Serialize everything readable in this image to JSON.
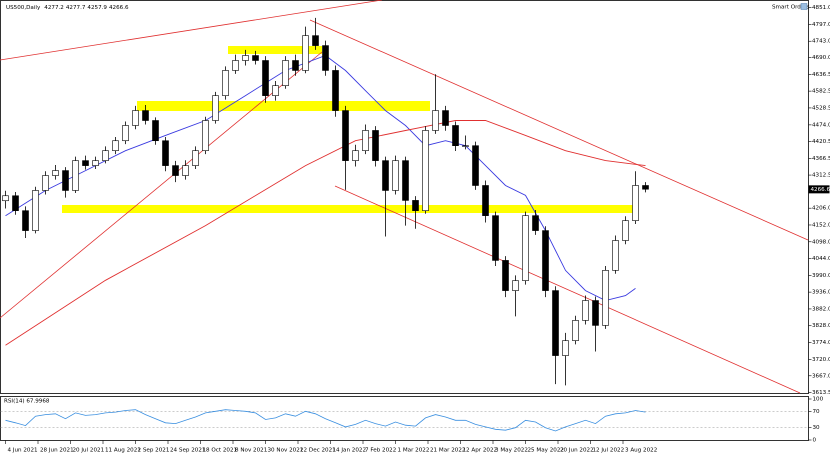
{
  "chart_data": {
    "type": "candlestick",
    "symbol": "US500,Daily",
    "readout": [
      4277.2,
      4277.7,
      4257.9,
      4266.6
    ],
    "toolbar_label": "Smart Orders",
    "candles": [
      [
        4230,
        4262,
        4205,
        4246
      ],
      [
        4246,
        4258,
        4185,
        4198
      ],
      [
        4198,
        4212,
        4110,
        4134
      ],
      [
        4134,
        4275,
        4125,
        4263
      ],
      [
        4263,
        4325,
        4250,
        4311
      ],
      [
        4311,
        4345,
        4298,
        4327
      ],
      [
        4327,
        4338,
        4240,
        4263
      ],
      [
        4263,
        4372,
        4255,
        4359
      ],
      [
        4359,
        4375,
        4330,
        4343
      ],
      [
        4343,
        4372,
        4332,
        4359
      ],
      [
        4359,
        4405,
        4350,
        4391
      ],
      [
        4391,
        4435,
        4380,
        4423
      ],
      [
        4423,
        4485,
        4412,
        4472
      ],
      [
        4472,
        4535,
        4460,
        4520
      ],
      [
        4520,
        4538,
        4475,
        4488
      ],
      [
        4488,
        4498,
        4410,
        4423
      ],
      [
        4423,
        4435,
        4325,
        4343
      ],
      [
        4343,
        4358,
        4290,
        4311
      ],
      [
        4311,
        4360,
        4298,
        4343
      ],
      [
        4343,
        4405,
        4332,
        4391
      ],
      [
        4391,
        4500,
        4380,
        4488
      ],
      [
        4488,
        4580,
        4478,
        4568
      ],
      [
        4568,
        4662,
        4555,
        4649
      ],
      [
        4649,
        4700,
        4638,
        4681
      ],
      [
        4681,
        4715,
        4665,
        4697
      ],
      [
        4697,
        4712,
        4668,
        4681
      ],
      [
        4681,
        4695,
        4545,
        4568
      ],
      [
        4568,
        4615,
        4552,
        4600
      ],
      [
        4600,
        4695,
        4590,
        4681
      ],
      [
        4681,
        4700,
        4632,
        4649
      ],
      [
        4649,
        4790,
        4640,
        4761
      ],
      [
        4761,
        4818,
        4715,
        4729
      ],
      [
        4729,
        4745,
        4632,
        4649
      ],
      [
        4649,
        4665,
        4500,
        4520
      ],
      [
        4520,
        4535,
        4265,
        4359
      ],
      [
        4359,
        4410,
        4340,
        4391
      ],
      [
        4391,
        4475,
        4380,
        4456
      ],
      [
        4456,
        4470,
        4340,
        4359
      ],
      [
        4359,
        4372,
        4115,
        4263
      ],
      [
        4263,
        4375,
        4250,
        4359
      ],
      [
        4359,
        4372,
        4150,
        4231
      ],
      [
        4231,
        4245,
        4140,
        4198
      ],
      [
        4198,
        4470,
        4188,
        4456
      ],
      [
        4456,
        4637,
        4445,
        4520
      ],
      [
        4520,
        4535,
        4455,
        4472
      ],
      [
        4472,
        4485,
        4390,
        4407
      ],
      [
        4407,
        4440,
        4395,
        4407
      ],
      [
        4407,
        4420,
        4265,
        4279
      ],
      [
        4279,
        4295,
        4160,
        4182
      ],
      [
        4182,
        4195,
        4020,
        4038
      ],
      [
        4038,
        4052,
        3920,
        3941
      ],
      [
        3941,
        3990,
        3858,
        3973
      ],
      [
        3973,
        4195,
        3960,
        4182
      ],
      [
        4182,
        4200,
        4120,
        4134
      ],
      [
        4134,
        4148,
        3920,
        3941
      ],
      [
        3941,
        3955,
        3640,
        3732
      ],
      [
        3732,
        3805,
        3636,
        3780
      ],
      [
        3780,
        3860,
        3768,
        3845
      ],
      [
        3845,
        3925,
        3832,
        3909
      ],
      [
        3909,
        3922,
        3745,
        3829
      ],
      [
        3829,
        4020,
        3818,
        4006
      ],
      [
        4006,
        4118,
        3995,
        4102
      ],
      [
        4102,
        4180,
        4090,
        4166
      ],
      [
        4166,
        4325,
        4155,
        4279
      ],
      [
        4279,
        4290,
        4257,
        4267
      ]
    ],
    "candle_color": "#000000",
    "series": [
      {
        "color": "#3a3ae0",
        "x": [
          0,
          4,
          8,
          12,
          16,
          20,
          24,
          28,
          32,
          34,
          36,
          38,
          40,
          42,
          44,
          46,
          48,
          50,
          52,
          54,
          56,
          58,
          60,
          62,
          63
        ],
        "values": [
          4182,
          4263,
          4327,
          4391,
          4440,
          4488,
          4568,
          4649,
          4697,
          4649,
          4584,
          4520,
          4472,
          4407,
          4423,
          4407,
          4343,
          4279,
          4247,
          4134,
          4006,
          3941,
          3909,
          3925,
          3948
        ]
      },
      {
        "color": "#e03030",
        "x": [
          0,
          10,
          20,
          30,
          35,
          40,
          45,
          48,
          52,
          56,
          60,
          64
        ],
        "values": [
          3765,
          3974,
          4150,
          4343,
          4423,
          4456,
          4488,
          4488,
          4440,
          4391,
          4359,
          4343
        ]
      }
    ],
    "xlim": [
      -0.5,
      80.3
    ],
    "ylim": [
      3610,
      4874
    ],
    "xticks": [
      {
        "value": 0,
        "label": "4 Jun 2021"
      },
      {
        "value": 3.25,
        "label": "28 Jun 2021"
      },
      {
        "value": 6.5,
        "label": "20 Jul 2021"
      },
      {
        "value": 9.75,
        "label": "11 Aug 2021"
      },
      {
        "value": 13,
        "label": "2 Sep 2021"
      },
      {
        "value": 16.25,
        "label": "24 Sep 2021"
      },
      {
        "value": 19.5,
        "label": "18 Oct 2021"
      },
      {
        "value": 22.75,
        "label": "8 Nov 2021"
      },
      {
        "value": 26,
        "label": "30 Nov 2021"
      },
      {
        "value": 29.25,
        "label": "22 Dec 2021"
      },
      {
        "value": 32.5,
        "label": "14 Jan 2022"
      },
      {
        "value": 35.75,
        "label": "7 Feb 2022"
      },
      {
        "value": 39,
        "label": "1 Mar 2022"
      },
      {
        "value": 42.25,
        "label": "21 Mar 2022"
      },
      {
        "value": 45.5,
        "label": "12 Apr 2022"
      },
      {
        "value": 48.75,
        "label": "3 May 2022"
      },
      {
        "value": 52,
        "label": "25 May 2022"
      },
      {
        "value": 55.25,
        "label": "20 Jun 2022"
      },
      {
        "value": 58.5,
        "label": "12 Jul 2022"
      },
      {
        "value": 61.75,
        "label": "3 Aug 2022"
      }
    ],
    "yticks": [
      {
        "value": 4851,
        "label": "4851.0"
      },
      {
        "value": 4797,
        "label": "4797.0"
      },
      {
        "value": 4743,
        "label": "4743.0"
      },
      {
        "value": 4690,
        "label": "4690.0"
      },
      {
        "value": 4636.5,
        "label": "4636.5"
      },
      {
        "value": 4582.5,
        "label": "4582.5"
      },
      {
        "value": 4528.5,
        "label": "4528.5"
      },
      {
        "value": 4474,
        "label": "4474.0"
      },
      {
        "value": 4420.5,
        "label": "4420.5"
      },
      {
        "value": 4366.5,
        "label": "4366.5"
      },
      {
        "value": 4312.5,
        "label": "4312.5"
      },
      {
        "value": 4206,
        "label": "4206.0"
      },
      {
        "value": 4152,
        "label": "4152.0"
      },
      {
        "value": 4098,
        "label": "4098.0"
      },
      {
        "value": 4044,
        "label": "4044.0"
      },
      {
        "value": 3990,
        "label": "3990.0"
      },
      {
        "value": 3936,
        "label": "3936.0"
      },
      {
        "value": 3882,
        "label": "3882.0"
      },
      {
        "value": 3828,
        "label": "3828.0"
      },
      {
        "value": 3774,
        "label": "3774.0"
      },
      {
        "value": 3720,
        "label": "3720.0"
      },
      {
        "value": 3667,
        "label": "3667.0"
      },
      {
        "value": 3613.5,
        "label": "3613.5"
      }
    ],
    "rsi": {
      "title": "RSI(14) 67.9968",
      "color": "#3a8fe0",
      "values": [
        48,
        42,
        35,
        58,
        62,
        64,
        52,
        66,
        60,
        62,
        66,
        68,
        72,
        74,
        62,
        52,
        42,
        40,
        48,
        56,
        66,
        70,
        74,
        72,
        70,
        66,
        50,
        54,
        64,
        58,
        70,
        64,
        52,
        42,
        32,
        38,
        48,
        40,
        34,
        44,
        36,
        34,
        54,
        62,
        56,
        48,
        48,
        38,
        32,
        26,
        24,
        30,
        48,
        44,
        30,
        22,
        32,
        40,
        48,
        40,
        58,
        64,
        66,
        72,
        68
      ],
      "ylim": [
        0,
        100
      ],
      "yticks": [
        100,
        70,
        30,
        0
      ],
      "levels": [
        70,
        30
      ]
    }
  }
}
